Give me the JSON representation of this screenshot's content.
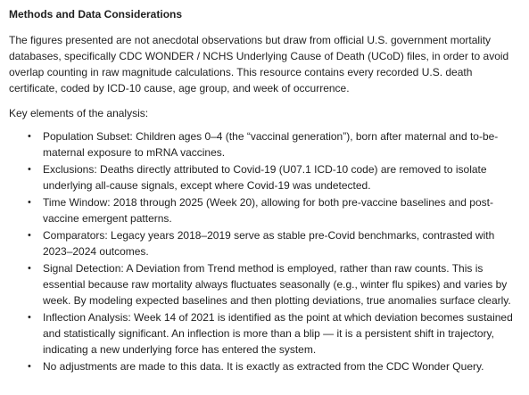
{
  "document": {
    "heading": "Methods and Data Considerations",
    "intro": "The figures presented are not anecdotal observations but draw from official U.S. government mortality databases, specifically CDC WONDER / NCHS Underlying Cause of Death (UCoD) files, in order to avoid overlap counting in raw magnitude calculations. This resource contains every recorded U.S. death certificate, coded by ICD-10 cause, age group, and week of occurrence.",
    "lead": "Key elements of the analysis:",
    "elements": [
      "Population Subset: Children ages 0–4 (the “vaccinal generation”), born after maternal and to-be-maternal exposure to mRNA vaccines.",
      "Exclusions: Deaths directly attributed to Covid-19 (U07.1 ICD-10 code) are removed to isolate underlying all-cause signals, except where Covid-19 was undetected.",
      "Time Window: 2018 through 2025 (Week 20), allowing for both pre-vaccine baselines and post-vaccine emergent patterns.",
      "Comparators: Legacy years 2018–2019 serve as stable pre-Covid benchmarks, contrasted with 2023–2024 outcomes.",
      "Signal Detection: A Deviation from Trend method is employed, rather than raw counts. This is essential because raw mortality always fluctuates seasonally (e.g., winter flu spikes) and varies by week. By modeling expected baselines and then plotting deviations, true anomalies surface clearly.",
      "Inflection Analysis: Week 14 of 2021 is identified as the point at which deviation becomes sustained and statistically significant. An inflection is more than a blip — it is a persistent shift in trajectory, indicating a new underlying force has entered the system.",
      "No adjustments are made to this data. It is exactly as extracted from the CDC Wonder Query."
    ],
    "bullet_glyph": "•"
  }
}
